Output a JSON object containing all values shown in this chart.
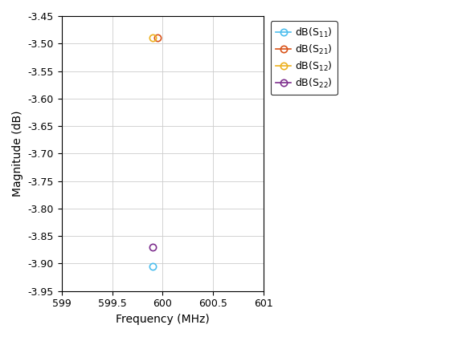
{
  "series": [
    {
      "label": "dB(S$_{11}$)",
      "x": [
        599.9
      ],
      "y": [
        -3.905
      ],
      "color": "#4DBEEE",
      "marker": "o",
      "linestyle": "-"
    },
    {
      "label": "dB(S$_{21}$)",
      "x": [
        599.95
      ],
      "y": [
        -3.49
      ],
      "color": "#D95319",
      "marker": "o",
      "linestyle": "-"
    },
    {
      "label": "dB(S$_{12}$)",
      "x": [
        599.9
      ],
      "y": [
        -3.49
      ],
      "color": "#EDB120",
      "marker": "o",
      "linestyle": "-"
    },
    {
      "label": "dB(S$_{22}$)",
      "x": [
        599.9
      ],
      "y": [
        -3.87
      ],
      "color": "#7E2F8E",
      "marker": "o",
      "linestyle": "-"
    }
  ],
  "xlabel": "Frequency (MHz)",
  "ylabel": "Magnitude (dB)",
  "xlim": [
    599,
    601
  ],
  "ylim": [
    -3.95,
    -3.45
  ],
  "xticks": [
    599,
    599.5,
    600,
    600.5,
    601
  ],
  "yticks": [
    -3.95,
    -3.9,
    -3.85,
    -3.8,
    -3.75,
    -3.7,
    -3.65,
    -3.6,
    -3.55,
    -3.5,
    -3.45
  ],
  "grid": true,
  "background_color": "#FFFFFF",
  "figure_color": "#FFFFFF",
  "figure_width": 5.6,
  "figure_height": 4.2,
  "dpi": 100
}
